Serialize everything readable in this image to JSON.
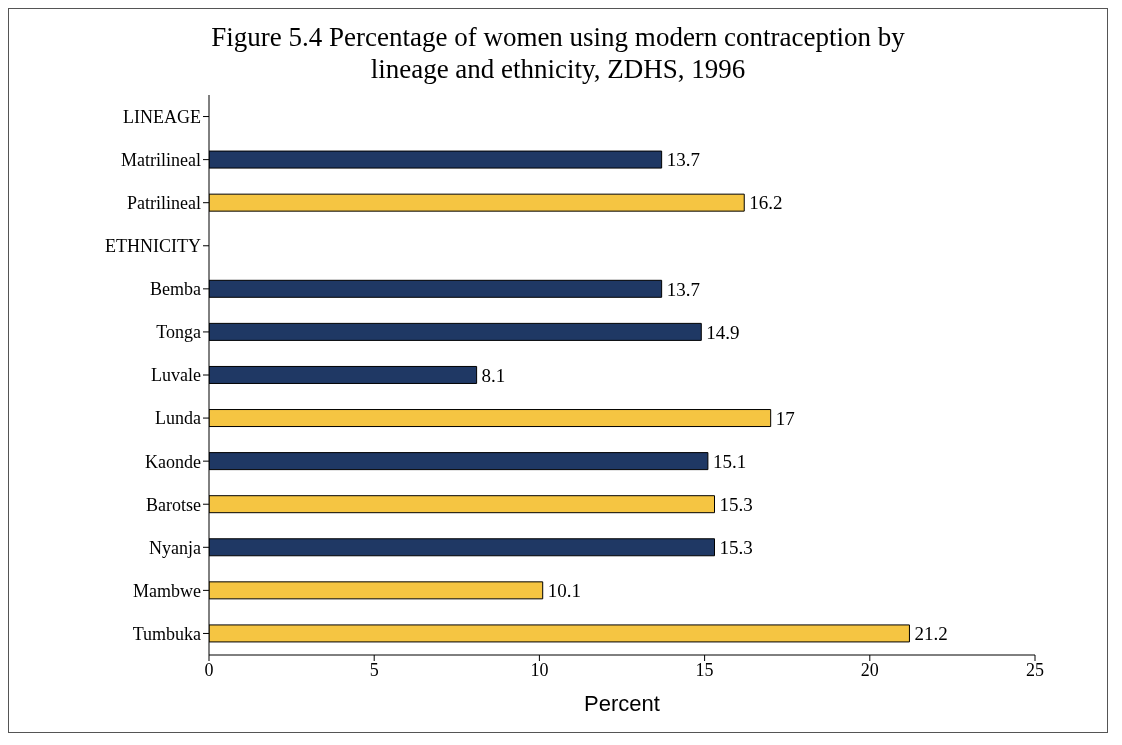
{
  "chart_data": {
    "type": "bar",
    "orientation": "horizontal",
    "title": "Figure 5.4 Percentage of women using modern contraception by lineage and ethnicity, ZDHS, 1996",
    "xlabel": "Percent",
    "categories": [
      "LINEAGE",
      "Matrilineal",
      "Patrilineal",
      "ETHNICITY",
      "Bemba",
      "Tonga",
      "Luvale",
      "Lunda",
      "Kaonde",
      "Barotse",
      "Nyanja",
      "Mambwe",
      "Tumbuka"
    ],
    "values": [
      null,
      13.7,
      16.2,
      null,
      13.7,
      14.9,
      8.1,
      17,
      15.1,
      15.3,
      15.3,
      10.1,
      21.2
    ],
    "colors": [
      "#1f3864",
      "#1f3864",
      "#f5c542",
      "#1f3864",
      "#1f3864",
      "#1f3864",
      "#1f3864",
      "#f5c542",
      "#1f3864",
      "#f5c542",
      "#1f3864",
      "#f5c542",
      "#f5c542"
    ],
    "xlim": [
      0,
      25
    ],
    "xticks": [
      0,
      5,
      10,
      15,
      20,
      25
    ],
    "data_labels": true
  }
}
